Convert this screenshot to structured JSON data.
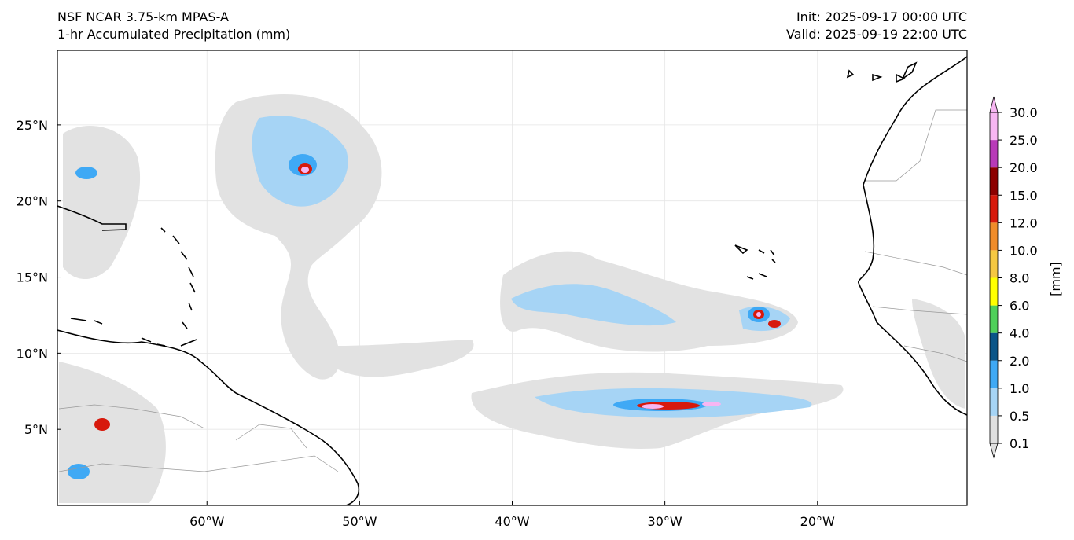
{
  "header": {
    "model": "NSF NCAR 3.75-km MPAS-A",
    "field": "1-hr Accumulated Precipitation (mm)",
    "init": "Init: 2025-09-17 00:00 UTC",
    "valid": "Valid: 2025-09-19 22:00 UTC"
  },
  "map": {
    "projection": "lat-lon",
    "lon_range": [
      -69.8,
      -10.2
    ],
    "lat_range": [
      0.0,
      29.9
    ],
    "lon_ticks": [
      {
        "value": -60,
        "label": "60°W"
      },
      {
        "value": -50,
        "label": "50°W"
      },
      {
        "value": -40,
        "label": "40°W"
      },
      {
        "value": -30,
        "label": "30°W"
      },
      {
        "value": -20,
        "label": "20°W"
      }
    ],
    "lat_ticks": [
      {
        "value": 25,
        "label": "25°N"
      },
      {
        "value": 20,
        "label": "20°N"
      },
      {
        "value": 15,
        "label": "15°N"
      },
      {
        "value": 10,
        "label": "10°N"
      },
      {
        "value": 5,
        "label": "5°N"
      }
    ],
    "grid": true,
    "features": [
      "coastlines",
      "country borders",
      "precipitation shading"
    ]
  },
  "colorbar": {
    "unit_label": "[mm]",
    "levels": [
      {
        "label": "0.1",
        "color": "#e0e0e0"
      },
      {
        "label": "0.5",
        "color": "#a6d4f5"
      },
      {
        "label": "1.0",
        "color": "#3fa9f5"
      },
      {
        "label": "2.0",
        "color": "#0a5588"
      },
      {
        "label": "4.0",
        "color": "#4fd05a"
      },
      {
        "label": "6.0",
        "color": "#ffff00"
      },
      {
        "label": "8.0",
        "color": "#f5c842"
      },
      {
        "label": "10.0",
        "color": "#f08c2a"
      },
      {
        "label": "12.0",
        "color": "#d7190c"
      },
      {
        "label": "15.0",
        "color": "#8c0000"
      },
      {
        "label": "20.0",
        "color": "#b83ab8"
      },
      {
        "label": "25.0",
        "color": "#f7b6f2"
      },
      {
        "label": "30.0",
        "color": ""
      }
    ]
  }
}
